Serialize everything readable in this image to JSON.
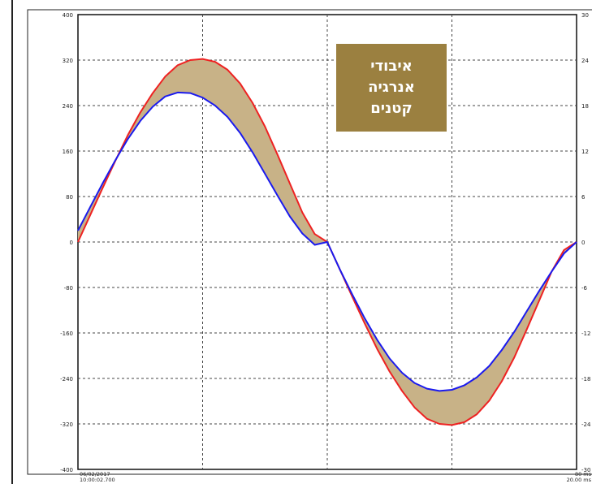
{
  "chart_data": {
    "type": "line",
    "title": "",
    "xlabel": "",
    "ylabel": "",
    "ylim": [
      -400,
      400
    ],
    "y2lim": [
      -30,
      30
    ],
    "xlim": [
      0,
      20
    ],
    "grid": true,
    "y_ticks_left": [
      "400",
      "320",
      "240",
      "160",
      "80",
      "0",
      "-80",
      "-160",
      "-240",
      "-320",
      "-400"
    ],
    "y_ticks_right": [
      "30",
      "24",
      "18",
      "12",
      "6",
      "0",
      "-6",
      "-12",
      "-18",
      "-24",
      "-30"
    ],
    "x_labels_left": [
      "06/02/2017",
      "10:00:02.700"
    ],
    "x_labels_right": [
      "80 ms",
      "20.00 ms"
    ],
    "series": [
      {
        "color": "#ee2222",
        "x": [
          0,
          0.5,
          1,
          1.5,
          2,
          2.5,
          3,
          3.5,
          4,
          4.5,
          5,
          5.5,
          6,
          6.5,
          7,
          7.5,
          8,
          8.5,
          9,
          9.5,
          10,
          10.5,
          11,
          11.5,
          12,
          12.5,
          13,
          13.5,
          14,
          14.5,
          15,
          15.5,
          16,
          16.5,
          17,
          17.5,
          18,
          18.5,
          19,
          19.5,
          20
        ],
        "values": [
          0,
          48,
          96,
          143,
          188,
          228,
          262,
          291,
          311,
          320,
          322,
          317,
          303,
          279,
          245,
          203,
          154,
          103,
          52,
          14,
          0,
          -48,
          -96,
          -143,
          -188,
          -228,
          -262,
          -291,
          -311,
          -320,
          -322,
          -317,
          -303,
          -279,
          -245,
          -203,
          -154,
          -103,
          -52,
          -14,
          0
        ]
      },
      {
        "color": "#1a1aee",
        "x": [
          0,
          0.5,
          1,
          1.5,
          2,
          2.5,
          3,
          3.5,
          4,
          4.5,
          5,
          5.5,
          6,
          6.5,
          7,
          7.5,
          8,
          8.5,
          9,
          9.5,
          10,
          10.5,
          11,
          11.5,
          12,
          12.5,
          13,
          13.5,
          14,
          14.5,
          15,
          15.5,
          16,
          16.5,
          17,
          17.5,
          18,
          18.5,
          19,
          19.5,
          20
        ],
        "values": [
          20,
          62,
          104,
          144,
          181,
          213,
          238,
          256,
          263,
          262,
          254,
          240,
          220,
          192,
          158,
          120,
          82,
          45,
          15,
          -5,
          0,
          -48,
          -92,
          -134,
          -172,
          -205,
          -230,
          -248,
          -258,
          -262,
          -260,
          -252,
          -238,
          -218,
          -190,
          -158,
          -122,
          -86,
          -52,
          -20,
          0
        ]
      }
    ],
    "fill_color": "#c8b287"
  },
  "callout": {
    "lines": [
      "איבודי",
      "אנרגיה",
      "קטנים"
    ],
    "color": "#9b8040"
  }
}
